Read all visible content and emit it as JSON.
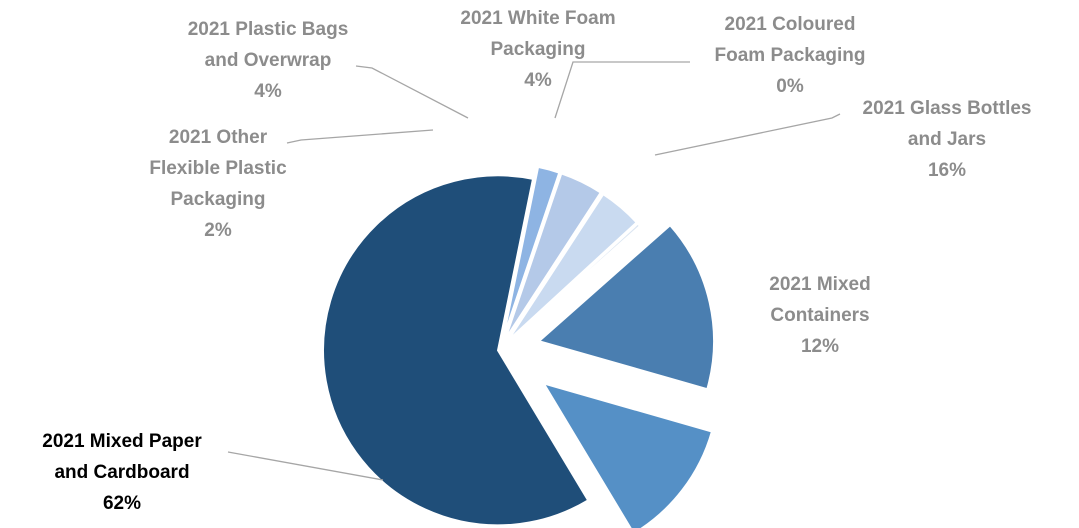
{
  "chart_data": {
    "type": "pie",
    "exploded": true,
    "slices": [
      {
        "label_lines": [
          "2021 Mixed Paper",
          "and Cardboard"
        ],
        "value_label": "62%",
        "value": 62,
        "color": "#1f4e79",
        "label_color": "dark"
      },
      {
        "label_lines": [
          "2021 Other",
          "Flexible Plastic",
          "Packaging"
        ],
        "value_label": "2%",
        "value": 2,
        "color": "#8eb4e3",
        "label_color": "muted"
      },
      {
        "label_lines": [
          "2021 Plastic Bags",
          "and Overwrap"
        ],
        "value_label": "4%",
        "value": 4,
        "color": "#b4c9e8",
        "label_color": "muted"
      },
      {
        "label_lines": [
          "2021 White Foam",
          "Packaging"
        ],
        "value_label": "4%",
        "value": 4,
        "color": "#c9daf0",
        "label_color": "muted"
      },
      {
        "label_lines": [
          "2021 Coloured",
          "Foam Packaging"
        ],
        "value_label": "0%",
        "value": 0.3,
        "color": "#dce6f2",
        "label_color": "muted"
      },
      {
        "label_lines": [
          "2021 Glass Bottles",
          "and Jars"
        ],
        "value_label": "16%",
        "value": 16,
        "color": "#4a7eb0",
        "label_color": "muted"
      },
      {
        "label_lines": [
          "2021 Mixed",
          "Containers"
        ],
        "value_label": "12%",
        "value": 12,
        "color": "#5590c6",
        "label_color": "muted"
      }
    ]
  }
}
